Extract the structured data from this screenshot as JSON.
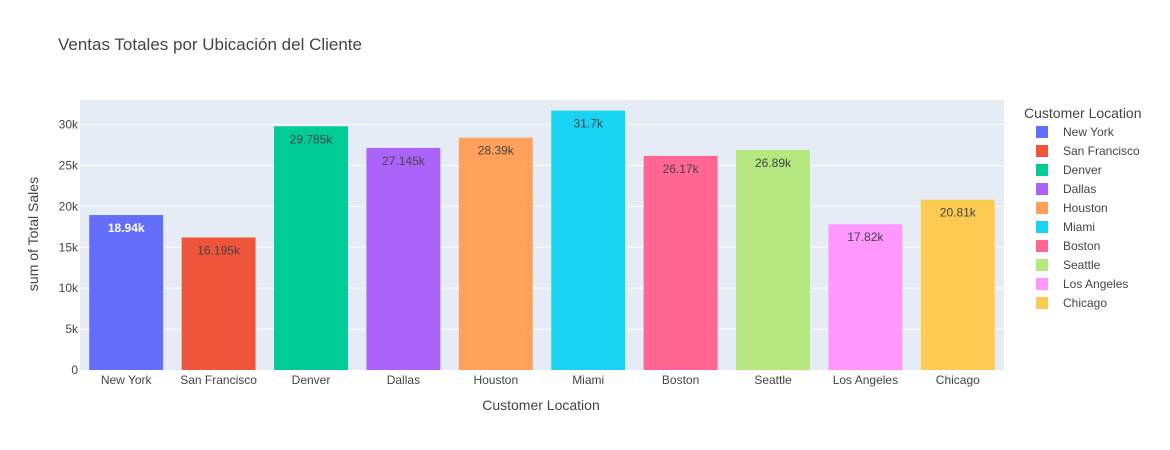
{
  "chart_data": {
    "type": "bar",
    "title": "Ventas Totales por Ubicación del Cliente",
    "xlabel": "Customer Location",
    "ylabel": "sum of Total Sales",
    "ylim": [
      0,
      33000
    ],
    "yticks": [
      0,
      5000,
      10000,
      15000,
      20000,
      25000,
      30000
    ],
    "ytick_labels": [
      "0",
      "5k",
      "10k",
      "15k",
      "20k",
      "25k",
      "30k"
    ],
    "grid": true,
    "legend_title": "Customer Location",
    "legend_position": "right",
    "categories": [
      "New York",
      "San Francisco",
      "Denver",
      "Dallas",
      "Houston",
      "Miami",
      "Boston",
      "Seattle",
      "Los Angeles",
      "Chicago"
    ],
    "values": [
      18940,
      16195,
      29785,
      27145,
      28390,
      31700,
      26170,
      26890,
      17820,
      20810
    ],
    "value_labels": [
      "18.94k",
      "16.195k",
      "29.785k",
      "27.145k",
      "28.39k",
      "31.7k",
      "26.17k",
      "26.89k",
      "17.82k",
      "20.81k"
    ],
    "colors": [
      "#636efa",
      "#ef553b",
      "#00cc96",
      "#ab63fa",
      "#ffa15a",
      "#19d3f3",
      "#ff6692",
      "#b6e880",
      "#ff97ff",
      "#fecb52"
    ],
    "label_colors": [
      "#ffffff",
      "#444444",
      "#444444",
      "#444444",
      "#444444",
      "#444444",
      "#444444",
      "#444444",
      "#444444",
      "#444444"
    ],
    "plot_background": "#e5ecf6"
  }
}
